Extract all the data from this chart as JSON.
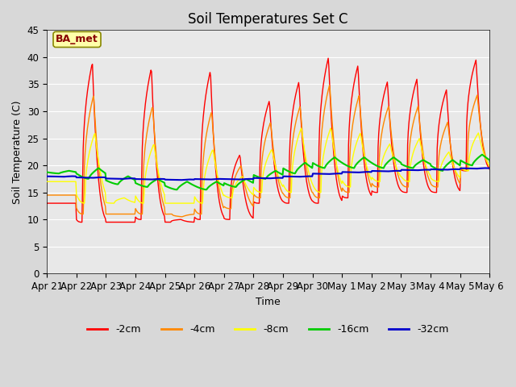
{
  "title": "Soil Temperatures Set C",
  "xlabel": "Time",
  "ylabel": "Soil Temperature (C)",
  "ylim": [
    0,
    45
  ],
  "yticks": [
    0,
    5,
    10,
    15,
    20,
    25,
    30,
    35,
    40,
    45
  ],
  "xtick_labels": [
    "Apr 21",
    "Apr 22",
    "Apr 23",
    "Apr 24",
    "Apr 25",
    "Apr 26",
    "Apr 27",
    "Apr 28",
    "Apr 29",
    "Apr 30",
    "May 1",
    "May 2",
    "May 3",
    "May 4",
    "May 5",
    "May 6"
  ],
  "annotation": "BA_met",
  "legend_labels": [
    "-2cm",
    "-4cm",
    "-8cm",
    "-16cm",
    "-32cm"
  ],
  "line_colors": [
    "#ff0000",
    "#ff8800",
    "#ffff00",
    "#00cc00",
    "#0000cc"
  ],
  "plot_bg_color": "#e8e8e8",
  "title_fontsize": 12,
  "axis_fontsize": 9,
  "peaks_2cm": [
    13,
    39,
    9.5,
    38,
    10,
    37.5,
    22,
    32,
    35.5,
    40,
    38.5,
    35.5,
    36,
    34,
    39.5,
    19
  ],
  "troughs_2cm": [
    13,
    9.5,
    9.5,
    10,
    9.5,
    10,
    10,
    13,
    13,
    13,
    14,
    15,
    15,
    15,
    19,
    19
  ],
  "peaks_4cm": [
    14.5,
    33,
    11,
    31,
    10.5,
    30,
    20,
    28,
    31,
    35,
    33,
    31,
    31,
    28,
    33,
    20
  ],
  "troughs_4cm": [
    14.5,
    11,
    11,
    11,
    11,
    11,
    12,
    14,
    14,
    14,
    15,
    16,
    16,
    16,
    19,
    19
  ],
  "peaks_8cm": [
    17,
    26,
    14,
    24,
    13,
    23,
    18,
    23,
    27,
    27,
    26,
    24,
    25,
    22.5,
    26,
    21
  ],
  "troughs_8cm": [
    17,
    13,
    13,
    13,
    13,
    13,
    14,
    15,
    15,
    15,
    16,
    17,
    17,
    17,
    19,
    19.5
  ],
  "peaks_16cm": [
    19,
    19.5,
    18,
    17.5,
    17,
    17,
    17.5,
    19,
    20.5,
    21.5,
    21.5,
    21.5,
    21,
    21,
    22,
    21
  ],
  "troughs_16cm": [
    18.5,
    17.5,
    16.5,
    16,
    15.5,
    15.5,
    16,
    17.5,
    18.5,
    19.5,
    19.5,
    19.5,
    19.5,
    19,
    20,
    20
  ],
  "peaks_32cm": [
    18,
    17.8,
    17.6,
    17.5,
    17.4,
    17.5,
    17.5,
    17.7,
    18.0,
    18.5,
    18.8,
    19.0,
    19.2,
    19.3,
    19.5,
    19.7
  ],
  "troughs_32cm": [
    17.9,
    17.7,
    17.5,
    17.4,
    17.3,
    17.4,
    17.4,
    17.6,
    17.9,
    18.4,
    18.7,
    18.9,
    19.1,
    19.2,
    19.4,
    19.6
  ]
}
